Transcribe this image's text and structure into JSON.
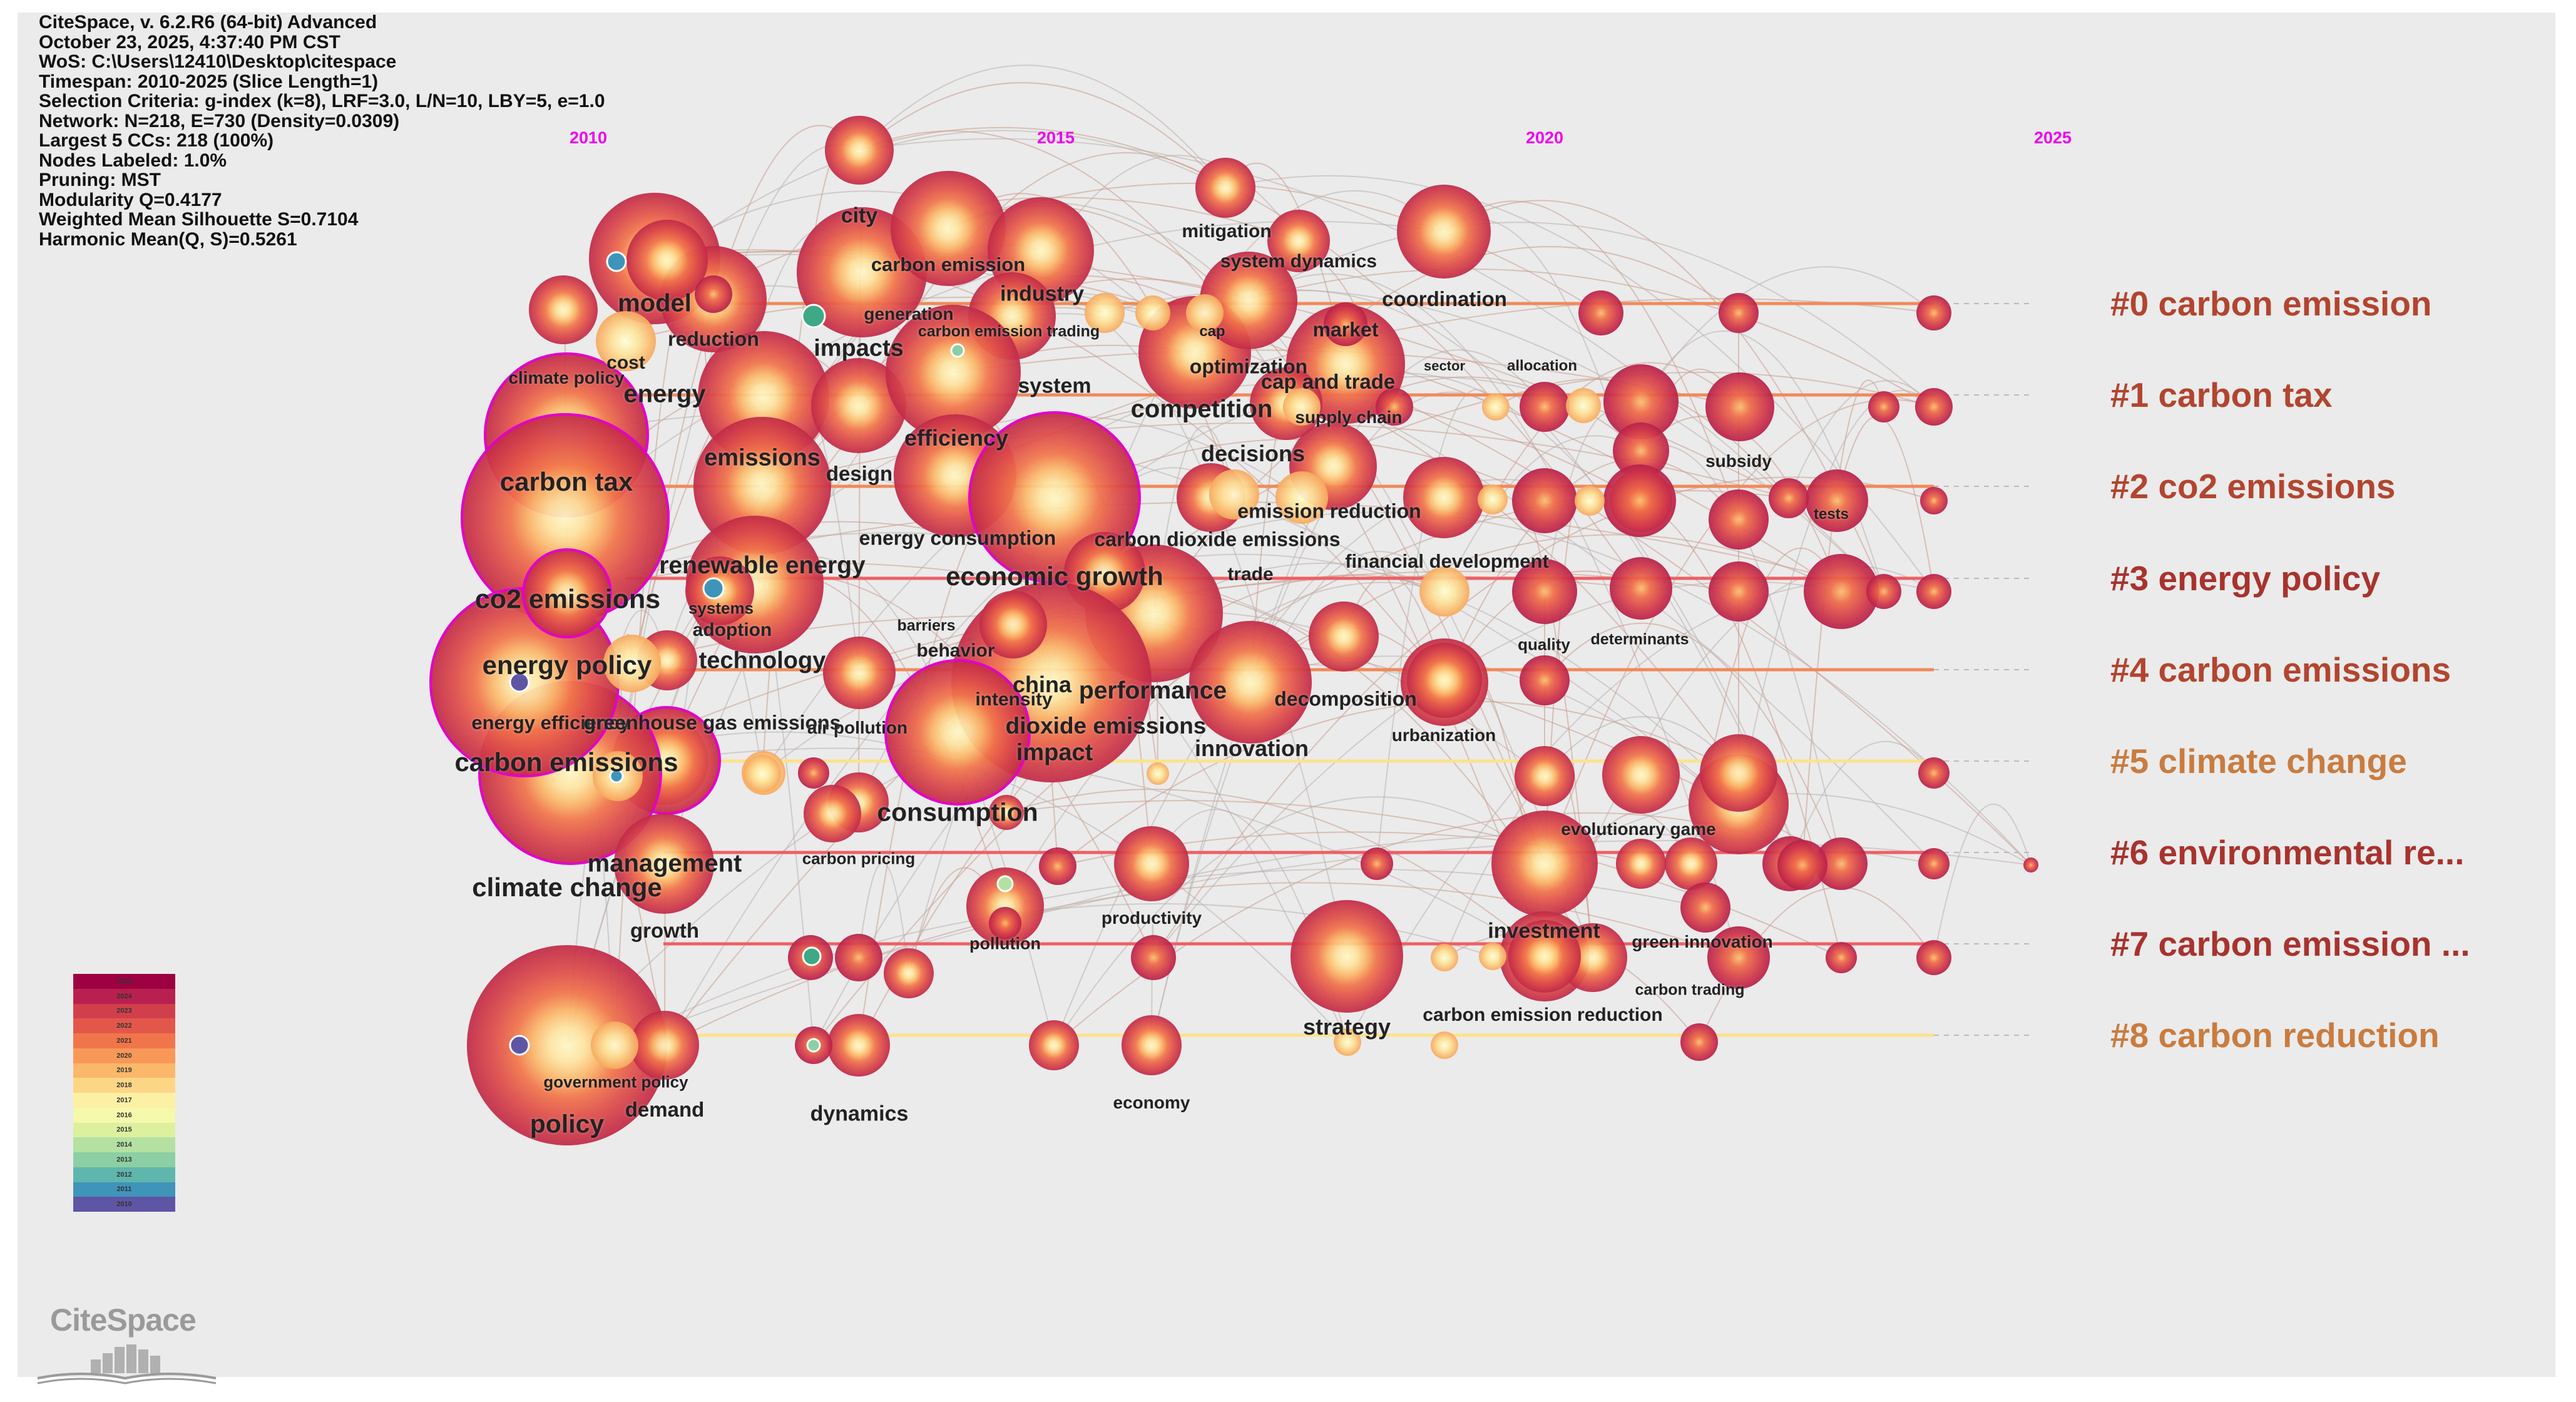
{
  "info_lines": [
    "CiteSpace, v. 6.2.R6 (64-bit) Advanced",
    "October 23, 2025, 4:37:40 PM CST",
    "WoS: C:\\Users\\12410\\Desktop\\citespace",
    "Timespan: 2010-2025 (Slice Length=1)",
    "Selection Criteria: g-index (k=8), LRF=3.0, L/N=10, LBY=5, e=1.0",
    "Network: N=218, E=730 (Density=0.0309)",
    "Largest 5 CCs: 218 (100%)",
    "Nodes Labeled: 1.0%",
    "Pruning: MST",
    "Modularity Q=0.4177",
    "Weighted Mean Silhouette S=0.7104",
    "Harmonic Mean(Q, S)=0.5261"
  ],
  "years": [
    "2010",
    "2015",
    "2020",
    "2025"
  ],
  "clusters": [
    {
      "label": "#0 carbon emission",
      "color": "#b2452f"
    },
    {
      "label": "#1 carbon tax",
      "color": "#b2452f"
    },
    {
      "label": "#2 co2 emissions",
      "color": "#b2452f"
    },
    {
      "label": "#3 energy policy",
      "color": "#a8332e"
    },
    {
      "label": "#4 carbon emissions",
      "color": "#b2452f"
    },
    {
      "label": "#5 climate change",
      "color": "#c97c3f"
    },
    {
      "label": "#6 environmental re...",
      "color": "#a8332e"
    },
    {
      "label": "#7 carbon emission ...",
      "color": "#a8332e"
    },
    {
      "label": "#8 carbon reduction",
      "color": "#c97c3f"
    }
  ],
  "node_labels": [
    "city",
    "carbon emission",
    "generation",
    "industry",
    "carbon emission trading",
    "impacts",
    "model",
    "reduction",
    "cost",
    "climate policy",
    "energy",
    "system",
    "efficiency",
    "mitigation",
    "system dynamics",
    "coordination",
    "sector",
    "allocation",
    "cap",
    "optimization",
    "market",
    "cap and trade",
    "competition",
    "supply chain",
    "design",
    "emissions",
    "carbon tax",
    "decisions",
    "subsidy",
    "energy consumption",
    "carbon dioxide emissions",
    "emission reduction",
    "tests",
    "co2 emissions",
    "renewable energy",
    "economic growth",
    "trade",
    "financial development",
    "systems",
    "adoption",
    "barriers",
    "behavior",
    "energy policy",
    "technology",
    "quality",
    "determinants",
    "china",
    "intensity",
    "performance",
    "energy efficiency",
    "greenhouse gas emissions",
    "air pollution",
    "dioxide emissions",
    "decomposition",
    "urbanization",
    "impact",
    "innovation",
    "carbon emissions",
    "consumption",
    "evolutionary game",
    "carbon pricing",
    "management",
    "climate change",
    "productivity",
    "pollution",
    "growth",
    "investment",
    "green innovation",
    "carbon trading",
    "strategy",
    "carbon emission reduction",
    "government policy",
    "demand",
    "policy",
    "dynamics",
    "economy"
  ],
  "legend_years": [
    "2025",
    "2024",
    "2023",
    "2022",
    "2021",
    "2020",
    "2019",
    "2018",
    "2017",
    "2016",
    "2015",
    "2014",
    "2013",
    "2012",
    "2011",
    "2010"
  ],
  "legend_colors": [
    "#9e0142",
    "#b9204f",
    "#d13f4c",
    "#e2574a",
    "#f1754a",
    "#f89858",
    "#fbb86b",
    "#fdd685",
    "#fcf0a5",
    "#f4f9ab",
    "#dcf09e",
    "#b4e1a2",
    "#8ccfa4",
    "#5fb6ad",
    "#3f94b9",
    "#5e55a5"
  ],
  "logo_text": "CiteSpace",
  "colors": {
    "background": "#ebebeb",
    "year_label": "#ee00ee",
    "node_outer": "#c0284a",
    "highlight_ring": "#e100cc"
  }
}
